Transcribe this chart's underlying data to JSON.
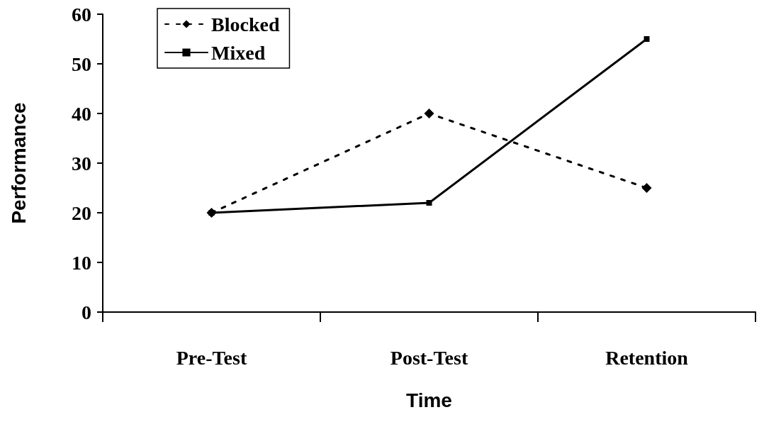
{
  "chart_data": {
    "type": "line",
    "xlabel": "Time",
    "ylabel": "Performance",
    "categories": [
      "Pre-Test",
      "Post-Test",
      "Retention"
    ],
    "series": [
      {
        "name": "Blocked",
        "color": "#000000",
        "values": [
          20,
          40,
          25
        ],
        "marker": "diamond",
        "line_style": "dashed"
      },
      {
        "name": "Mixed",
        "color": "#000000",
        "values": [
          20,
          22,
          55
        ],
        "marker": "square",
        "line_style": "solid"
      }
    ],
    "ylim": [
      0,
      60
    ],
    "yticks": [
      0,
      10,
      20,
      30,
      40,
      50,
      60
    ],
    "grid": false,
    "legend": "top left"
  }
}
